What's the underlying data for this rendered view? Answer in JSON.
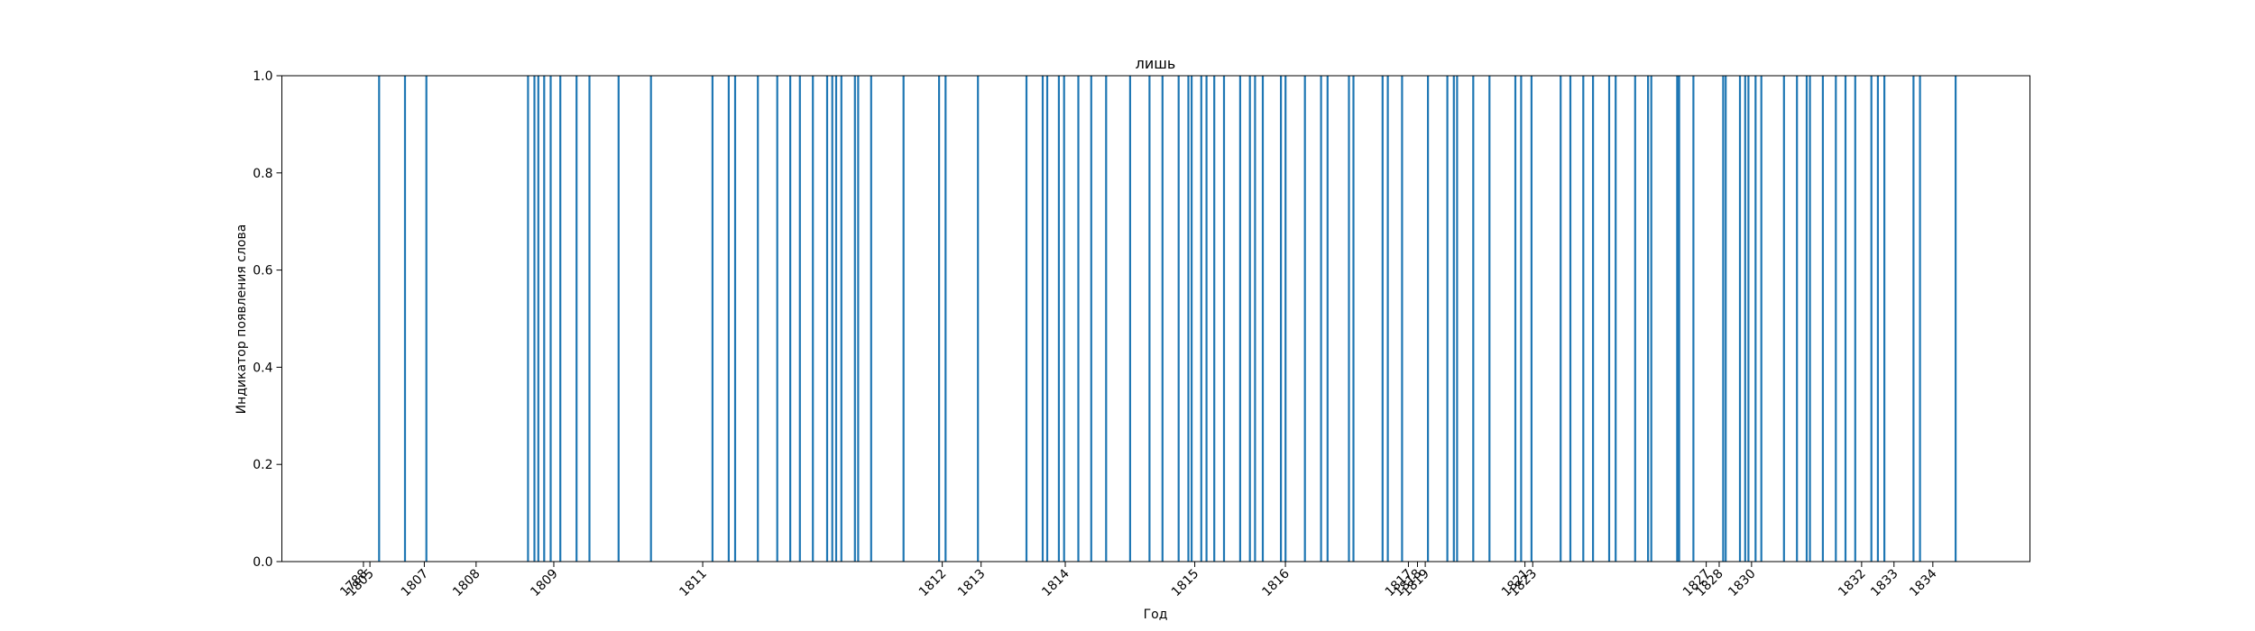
{
  "chart_data": {
    "type": "bar",
    "title": "лишь",
    "xlabel": "Год",
    "ylabel": "Индикатор появления слова",
    "ylim": [
      0,
      1
    ],
    "yticks": [
      "0.0",
      "0.2",
      "0.4",
      "0.6",
      "0.8",
      "1.0"
    ],
    "bar_color": "#1f77b4",
    "grid": false,
    "legend": "none",
    "xticks": [
      {
        "label": "1788",
        "x": 12.6
      },
      {
        "label": "1805",
        "x": 13.6
      },
      {
        "label": "1807",
        "x": 22.0
      },
      {
        "label": "1808",
        "x": 30.0
      },
      {
        "label": "1809",
        "x": 42.0
      },
      {
        "label": "1811",
        "x": 65.0
      },
      {
        "label": "1812",
        "x": 102.0
      },
      {
        "label": "1813",
        "x": 108.0
      },
      {
        "label": "1814",
        "x": 121.0
      },
      {
        "label": "1815",
        "x": 141.0
      },
      {
        "label": "1816",
        "x": 155.0
      },
      {
        "label": "1817",
        "x": 174.0
      },
      {
        "label": "1818",
        "x": 175.4
      },
      {
        "label": "1819",
        "x": 176.6
      },
      {
        "label": "1821",
        "x": 192.0
      },
      {
        "label": "1823",
        "x": 193.2
      },
      {
        "label": "1827",
        "x": 220.0
      },
      {
        "label": "1828",
        "x": 222.0
      },
      {
        "label": "1830",
        "x": 227.0
      },
      {
        "label": "1832",
        "x": 244.0
      },
      {
        "label": "1833",
        "x": 249.0
      },
      {
        "label": "1834",
        "x": 255.0
      }
    ],
    "xlim": [
      0,
      270
    ],
    "occurrences": [
      15.0,
      19.0,
      22.3,
      38.0,
      39.0,
      39.6,
      40.5,
      41.5,
      43.0,
      45.5,
      47.5,
      52.0,
      57.0,
      66.5,
      69.0,
      70.0,
      80.0,
      73.5,
      76.5,
      78.5,
      82.0,
      84.2,
      85.0,
      85.6,
      86.4,
      88.5,
      89.0,
      91.0,
      96.0,
      101.5,
      102.5,
      107.5,
      115.0,
      117.5,
      118.2,
      120.0,
      120.8,
      123.0,
      125.0,
      127.3,
      131.0,
      134.0,
      136.0,
      138.5,
      140.0,
      140.5,
      142.0,
      142.8,
      144.0,
      145.5,
      148.0,
      149.5,
      150.3,
      151.5,
      154.3,
      155.0,
      158.0,
      160.5,
      161.5,
      164.8,
      165.5,
      170.0,
      170.8,
      173.0,
      177.0,
      180.0,
      181.0,
      181.5,
      184.0,
      186.5,
      190.5,
      191.4,
      193.0,
      197.5,
      199.0,
      201.0,
      202.5,
      205.0,
      206.0,
      209.0,
      211.0,
      211.5,
      215.5,
      215.8,
      218.0,
      222.6,
      223.0,
      225.2,
      226.0,
      226.5,
      227.6,
      228.5,
      232.0,
      234.0,
      235.5,
      236.0,
      238.0,
      240.0,
      241.5,
      243.0,
      245.5,
      246.5,
      247.5,
      252.0,
      253.0,
      258.5
    ]
  }
}
